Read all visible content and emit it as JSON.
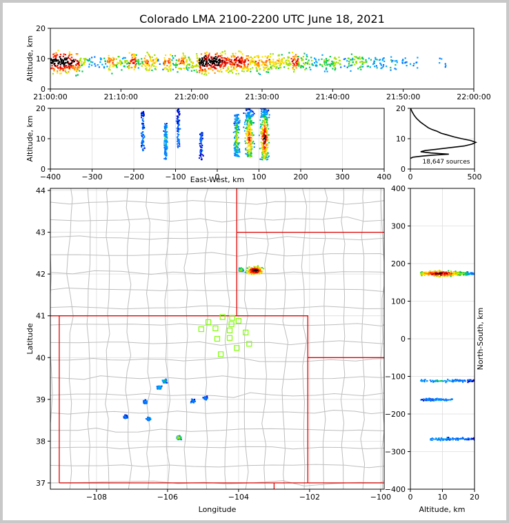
{
  "title": "Colorado LMA 2100-2200 UTC June 18, 2021",
  "colors": {
    "state_border": "#e00000",
    "county_border": "#bdbdbd",
    "station": "#7fff00"
  },
  "chart_data": [
    {
      "id": "time_height",
      "type": "heatmap",
      "ylabel": "Altitude, km",
      "ylim": [
        0,
        20
      ],
      "yticks": [
        "0",
        "10",
        "20"
      ],
      "xticks": [
        "21:00:00",
        "21:10:00",
        "21:20:00",
        "21:30:00",
        "21:40:00",
        "21:50:00",
        "22:00:00"
      ],
      "density_by_minute": [
        0.9,
        1.0,
        0.9,
        0.8,
        0.4,
        0.2,
        0.1,
        0.2,
        0.6,
        0.4,
        0.3,
        0.7,
        0.3,
        0.6,
        0.5,
        0.1,
        0.6,
        0.3,
        0.6,
        0.4,
        0.5,
        1.0,
        0.9,
        1.0,
        0.8,
        0.7,
        0.8,
        0.7,
        0.5,
        0.6,
        0.6,
        0.5,
        0.5,
        0.4,
        0.7,
        0.4,
        0.3,
        0.2,
        0.3,
        0.3,
        0.4,
        0.1,
        0.3,
        0.4,
        0.3,
        0.2,
        0.2,
        0.1,
        0.2,
        0.1,
        0.1,
        0.1,
        0.0,
        0.0,
        0.0,
        0.1,
        0.0,
        0.0,
        0.0,
        0.0
      ]
    },
    {
      "id": "ew_height",
      "type": "scatter",
      "xlabel": "East-West, km",
      "ylabel": "Altitude, km",
      "xlim": [
        -400,
        400
      ],
      "ylim": [
        0,
        20
      ],
      "xticks": [
        "−400",
        "−300",
        "−200",
        "−100",
        "0",
        "100",
        "200",
        "300",
        "400"
      ],
      "yticks": [
        "0",
        "10",
        "20"
      ],
      "clusters": [
        {
          "x": 112,
          "alt_min": 3,
          "alt_max": 20,
          "intensity": 1.0
        },
        {
          "x": 75,
          "alt_min": 4,
          "alt_max": 20,
          "intensity": 0.8
        },
        {
          "x": 45,
          "alt_min": 4,
          "alt_max": 18,
          "intensity": 0.5
        },
        {
          "x": -125,
          "alt_min": 3,
          "alt_max": 15,
          "intensity": 0.3
        },
        {
          "x": -180,
          "alt_min": 6,
          "alt_max": 19,
          "intensity": 0.15
        },
        {
          "x": -95,
          "alt_min": 7,
          "alt_max": 20,
          "intensity": 0.15
        },
        {
          "x": -40,
          "alt_min": 3,
          "alt_max": 12,
          "intensity": 0.1
        }
      ]
    },
    {
      "id": "altitude_histogram",
      "type": "line",
      "xlim": [
        0,
        500
      ],
      "ylim": [
        0,
        20
      ],
      "xticks": [
        "0",
        "500"
      ],
      "yticks": [
        "0",
        "10",
        "20"
      ],
      "annotation": "18,647 sources",
      "points": [
        [
          0,
          3.5
        ],
        [
          20,
          3.9
        ],
        [
          100,
          4.3
        ],
        [
          180,
          4.6
        ],
        [
          300,
          4.9
        ],
        [
          160,
          5.3
        ],
        [
          80,
          5.7
        ],
        [
          115,
          6.1
        ],
        [
          200,
          6.5
        ],
        [
          300,
          7.0
        ],
        [
          420,
          7.6
        ],
        [
          480,
          8.2
        ],
        [
          510,
          8.8
        ],
        [
          470,
          9.4
        ],
        [
          400,
          10.0
        ],
        [
          340,
          10.6
        ],
        [
          290,
          11.2
        ],
        [
          240,
          11.8
        ],
        [
          210,
          12.4
        ],
        [
          170,
          13.0
        ],
        [
          140,
          13.6
        ],
        [
          120,
          14.2
        ],
        [
          100,
          14.8
        ],
        [
          80,
          15.4
        ],
        [
          65,
          16.0
        ],
        [
          50,
          16.6
        ],
        [
          38,
          17.2
        ],
        [
          28,
          17.8
        ],
        [
          20,
          18.4
        ],
        [
          12,
          19.0
        ],
        [
          6,
          19.6
        ],
        [
          2,
          20.0
        ]
      ]
    },
    {
      "id": "plan_view",
      "type": "scatter",
      "xlabel": "Longitude",
      "ylabel": "Latitude",
      "xlim": [
        -109.3,
        -99.9
      ],
      "ylim": [
        36.85,
        44.05
      ],
      "xticks": [
        "−108",
        "−106",
        "−104",
        "−102",
        "−100"
      ],
      "yticks": [
        "37",
        "38",
        "39",
        "40",
        "41",
        "42",
        "43",
        "44"
      ],
      "state_borders": [
        [
          [
            -109.05,
            37.0
          ],
          [
            -109.05,
            41.0
          ],
          [
            -102.05,
            41.0
          ],
          [
            -102.05,
            37.0
          ],
          [
            -109.05,
            37.0
          ]
        ],
        [
          [
            -109.3,
            41.0
          ],
          [
            -109.05,
            41.0
          ]
        ],
        [
          [
            -104.05,
            41.0
          ],
          [
            -104.05,
            44.05
          ]
        ],
        [
          [
            -104.05,
            43.0
          ],
          [
            -99.9,
            43.0
          ]
        ],
        [
          [
            -102.05,
            40.0
          ],
          [
            -99.9,
            40.0
          ]
        ],
        [
          [
            -102.05,
            37.0
          ],
          [
            -99.9,
            37.0
          ]
        ],
        [
          [
            -103.0,
            37.0
          ],
          [
            -103.0,
            36.85
          ]
        ]
      ],
      "stations": [
        [
          -104.85,
          40.85
        ],
        [
          -104.45,
          40.97
        ],
        [
          -104.18,
          40.95
        ],
        [
          -104.0,
          40.88
        ],
        [
          -104.2,
          40.8
        ],
        [
          -105.05,
          40.68
        ],
        [
          -104.65,
          40.7
        ],
        [
          -104.25,
          40.65
        ],
        [
          -103.8,
          40.6
        ],
        [
          -104.6,
          40.45
        ],
        [
          -104.25,
          40.47
        ],
        [
          -103.7,
          40.33
        ],
        [
          -104.05,
          40.23
        ],
        [
          -104.5,
          40.08
        ]
      ],
      "source_clusters": [
        {
          "lon": -103.55,
          "lat": 42.1,
          "intensity": 1.0
        },
        {
          "lon": -103.95,
          "lat": 42.12,
          "intensity": 0.5
        },
        {
          "lon": -105.7,
          "lat": 38.1,
          "intensity": 0.5
        },
        {
          "lon": -106.1,
          "lat": 39.45,
          "intensity": 0.3
        },
        {
          "lon": -106.25,
          "lat": 39.3,
          "intensity": 0.3
        },
        {
          "lon": -106.65,
          "lat": 38.95,
          "intensity": 0.2
        },
        {
          "lon": -106.55,
          "lat": 38.55,
          "intensity": 0.2
        },
        {
          "lon": -107.2,
          "lat": 38.6,
          "intensity": 0.15
        },
        {
          "lon": -104.95,
          "lat": 39.05,
          "intensity": 0.15
        },
        {
          "lon": -105.3,
          "lat": 38.98,
          "intensity": 0.15
        }
      ]
    },
    {
      "id": "ns_height",
      "type": "scatter",
      "xlabel": "Altitude, km",
      "ylabel": "North-South, km",
      "xlim": [
        0,
        20
      ],
      "ylim": [
        -400,
        400
      ],
      "xticks": [
        "0",
        "10",
        "20"
      ],
      "yticks": [
        "−400",
        "−300",
        "−200",
        "−100",
        "0",
        "100",
        "200",
        "300",
        "400"
      ],
      "clusters": [
        {
          "y": 175,
          "alt_min": 3,
          "alt_max": 20,
          "intensity": 1.0
        },
        {
          "y": -110,
          "alt_min": 3,
          "alt_max": 20,
          "intensity": 0.3
        },
        {
          "y": -160,
          "alt_min": 3,
          "alt_max": 13,
          "intensity": 0.2
        },
        {
          "y": -265,
          "alt_min": 6,
          "alt_max": 20,
          "intensity": 0.25
        }
      ]
    }
  ]
}
